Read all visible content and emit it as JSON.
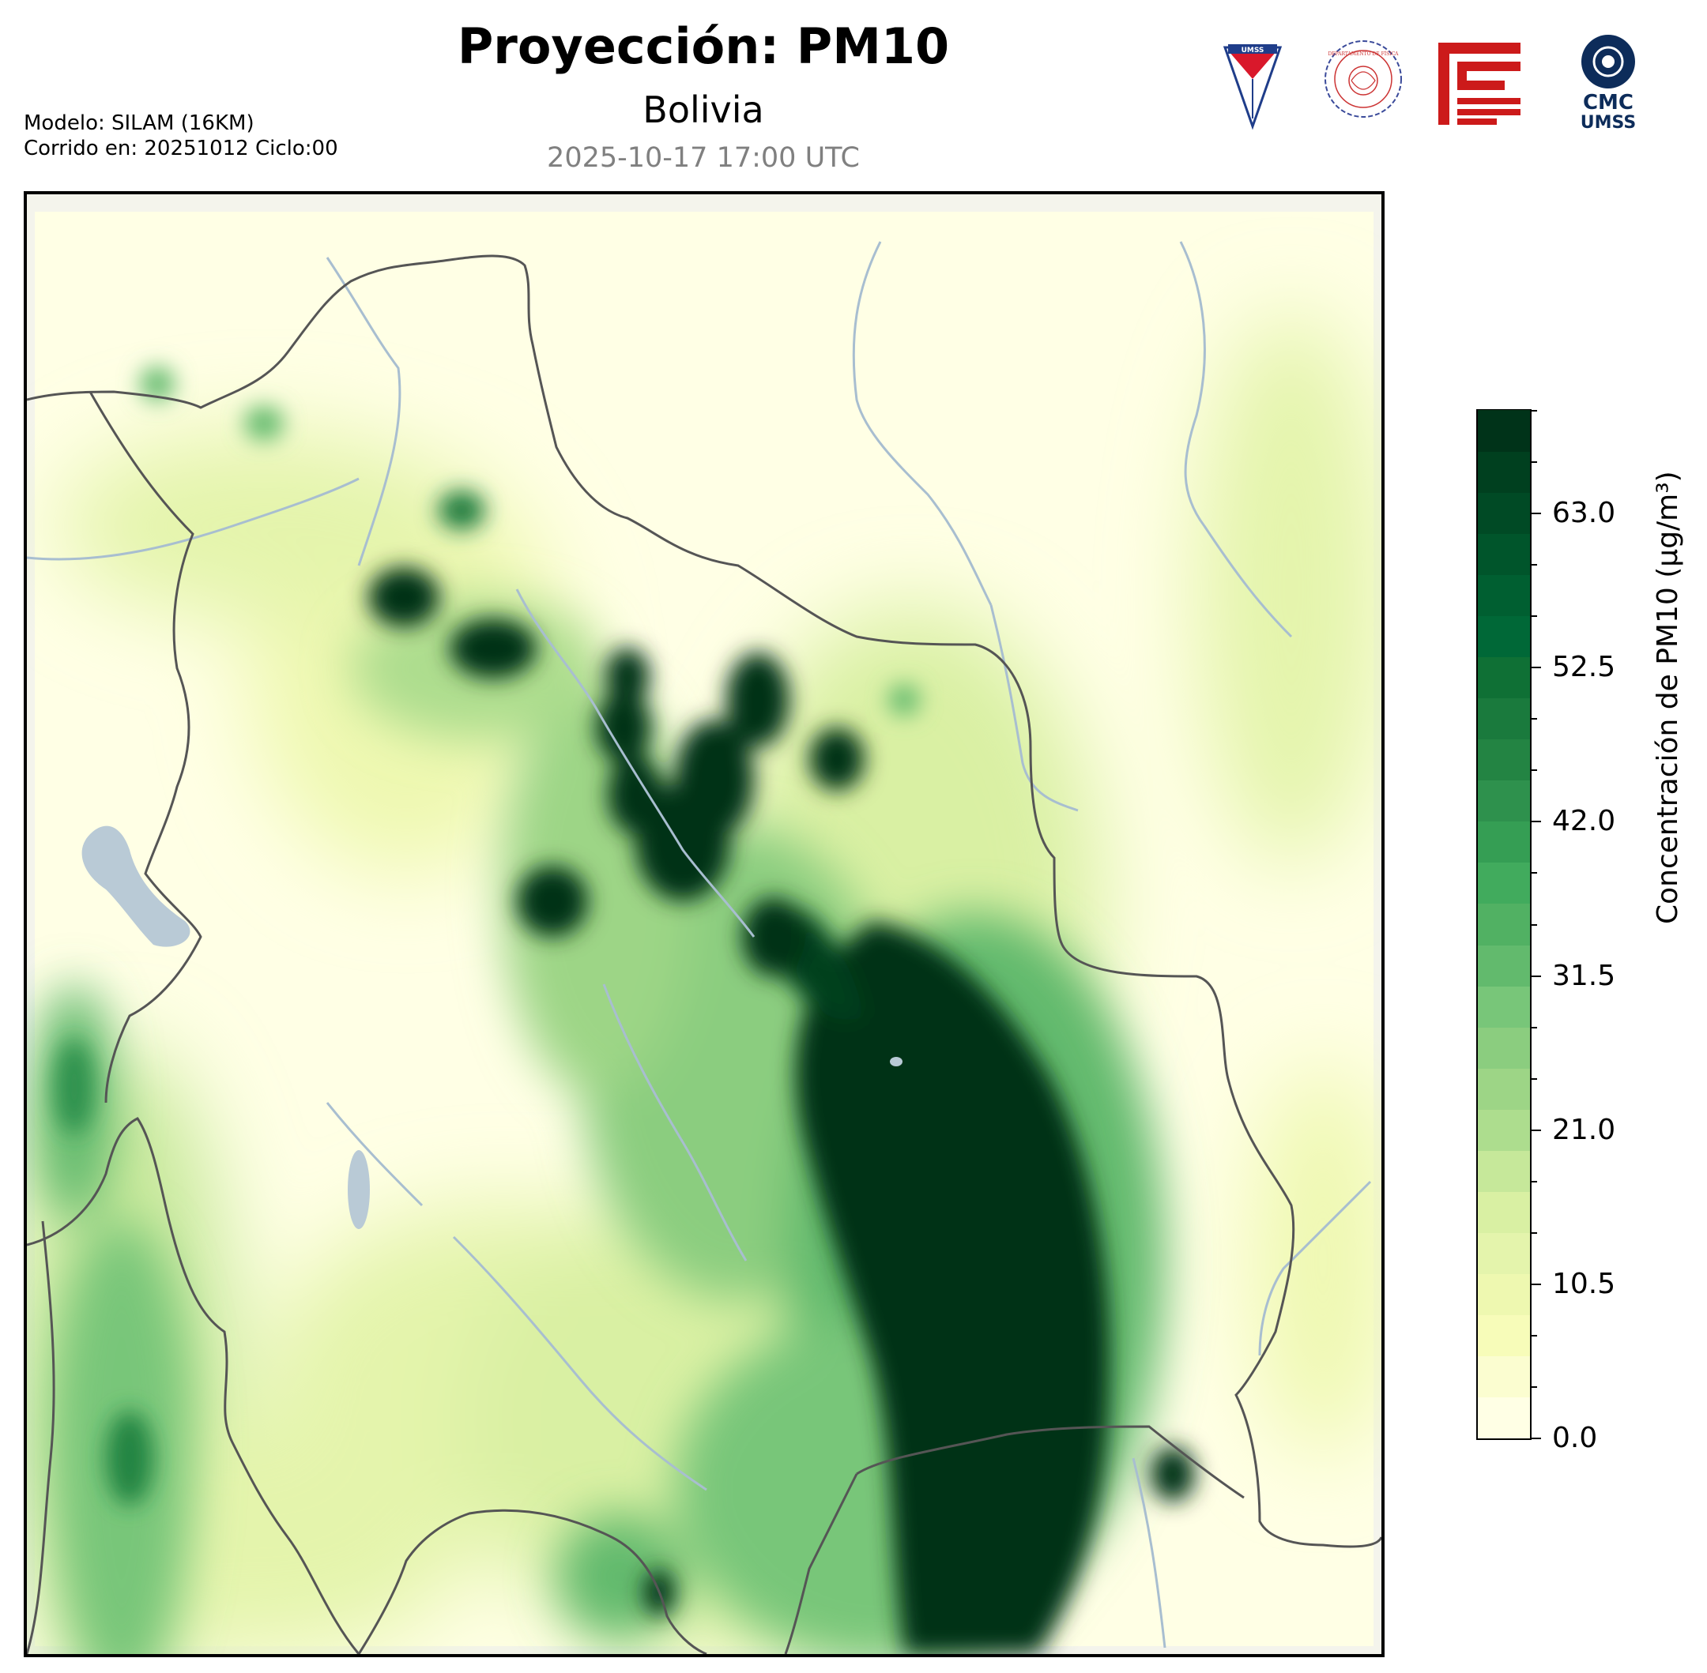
{
  "header": {
    "title": "Proyección: PM10",
    "subtitle": "Bolivia",
    "datetime": "2025-10-17 17:00 UTC",
    "model_line1": "Modelo: SILAM (16KM)",
    "model_line2": "Corrido en: 20251012 Ciclo:00"
  },
  "logos": {
    "umss_text": "UMSS",
    "fisica_text": "DEPARTAMENTO DE FÍSICA",
    "cmc_line1": "CMC",
    "cmc_line2": "UMSS"
  },
  "colorbar": {
    "label": "Concentración de PM10 (µg/m³)",
    "min": 0.0,
    "max": 70.0,
    "ticks": [
      "0.0",
      "10.5",
      "21.0",
      "31.5",
      "42.0",
      "52.5",
      "63.0"
    ],
    "tick_values": [
      0.0,
      10.5,
      21.0,
      31.5,
      42.0,
      52.5,
      63.0
    ],
    "colors": [
      "#ffffe5",
      "#fbfdd0",
      "#f7fcb9",
      "#eef8b0",
      "#e4f4ac",
      "#d9f0a3",
      "#c6e89a",
      "#addd8e",
      "#9dd586",
      "#8bcd7f",
      "#78c679",
      "#62ba6d",
      "#51b163",
      "#41ab5d",
      "#359e54",
      "#2e914d",
      "#238443",
      "#1a7a3d",
      "#0f7035",
      "#006837",
      "#005f31",
      "#00552b",
      "#004a25",
      "#00401f",
      "#003319"
    ]
  },
  "map": {
    "region": "Bolivia",
    "variable": "PM10",
    "colors": {
      "background": "#ffffe5",
      "border": "#555555",
      "river": "#a8bed0",
      "lake": "#b9cad6"
    }
  }
}
